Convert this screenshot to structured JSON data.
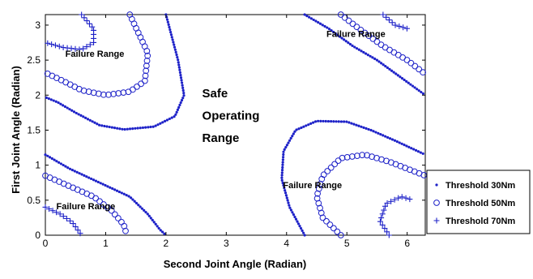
{
  "chart_data": {
    "type": "scatter",
    "title": "",
    "xlabel": "Second Joint Angle (Radian)",
    "ylabel": "First Joint Angle (Radian)",
    "xlim": [
      0,
      6.3
    ],
    "ylim": [
      0,
      3.15
    ],
    "xticks": [
      0,
      1,
      2,
      3,
      4,
      5,
      6
    ],
    "yticks": [
      0,
      0.5,
      1,
      1.5,
      2,
      2.5,
      3
    ],
    "ytick_labels": [
      "0",
      "0.5",
      "1",
      "1.5",
      "2",
      "2.5",
      "3"
    ],
    "grid": false,
    "legend_position": "right",
    "accent_color": "#1e22c8",
    "annotations": [
      {
        "text": "Failure Range",
        "x": 0.82,
        "y": 2.55,
        "style": "small"
      },
      {
        "text": "Failure Range",
        "x": 5.15,
        "y": 2.83,
        "style": "small"
      },
      {
        "text": "Failure Range",
        "x": 4.43,
        "y": 0.67,
        "style": "small"
      },
      {
        "text": "Failure Range",
        "x": 0.67,
        "y": 0.37,
        "style": "small"
      },
      {
        "text": "Safe",
        "x": 2.6,
        "y": 1.97,
        "style": "big"
      },
      {
        "text": "Operating",
        "x": 2.6,
        "y": 1.65,
        "style": "big"
      },
      {
        "text": "Range",
        "x": 2.6,
        "y": 1.33,
        "style": "big"
      }
    ],
    "series": [
      {
        "name": "Threshold 30Nm",
        "marker": "dot",
        "curves": [
          {
            "points": [
              [
                2.0,
                3.15
              ],
              [
                2.2,
                2.5
              ],
              [
                2.3,
                2.0
              ],
              [
                2.15,
                1.7
              ],
              [
                1.8,
                1.55
              ],
              [
                1.3,
                1.51
              ],
              [
                0.9,
                1.57
              ],
              [
                0.5,
                1.75
              ],
              [
                0.2,
                1.9
              ],
              [
                0.0,
                1.97
              ]
            ]
          },
          {
            "points": [
              [
                0.0,
                1.15
              ],
              [
                0.4,
                0.95
              ],
              [
                0.9,
                0.75
              ],
              [
                1.4,
                0.55
              ],
              [
                1.7,
                0.3
              ],
              [
                1.9,
                0.08
              ],
              [
                2.0,
                0.0
              ]
            ]
          },
          {
            "points": [
              [
                4.3,
                3.15
              ],
              [
                4.7,
                2.95
              ],
              [
                5.1,
                2.7
              ],
              [
                5.5,
                2.5
              ],
              [
                5.9,
                2.25
              ],
              [
                6.3,
                2.0
              ]
            ]
          },
          {
            "points": [
              [
                4.3,
                0.0
              ],
              [
                4.05,
                0.4
              ],
              [
                3.92,
                0.8
              ],
              [
                3.95,
                1.2
              ],
              [
                4.15,
                1.5
              ],
              [
                4.5,
                1.63
              ],
              [
                5.0,
                1.62
              ],
              [
                5.4,
                1.5
              ],
              [
                5.8,
                1.35
              ],
              [
                6.3,
                1.15
              ]
            ]
          }
        ]
      },
      {
        "name": "Threshold 50Nm",
        "marker": "circle",
        "curves": [
          {
            "points": [
              [
                1.4,
                3.15
              ],
              [
                1.7,
                2.6
              ],
              [
                1.65,
                2.2
              ],
              [
                1.4,
                2.05
              ],
              [
                1.0,
                2.0
              ],
              [
                0.6,
                2.07
              ],
              [
                0.3,
                2.2
              ],
              [
                0.0,
                2.32
              ]
            ]
          },
          {
            "points": [
              [
                0.0,
                0.85
              ],
              [
                0.4,
                0.7
              ],
              [
                0.8,
                0.55
              ],
              [
                1.1,
                0.35
              ],
              [
                1.3,
                0.15
              ],
              [
                1.35,
                0.0
              ]
            ]
          },
          {
            "points": [
              [
                4.9,
                3.15
              ],
              [
                5.2,
                2.95
              ],
              [
                5.6,
                2.7
              ],
              [
                6.0,
                2.5
              ],
              [
                6.3,
                2.3
              ]
            ]
          },
          {
            "points": [
              [
                4.9,
                0.0
              ],
              [
                4.6,
                0.25
              ],
              [
                4.5,
                0.55
              ],
              [
                4.6,
                0.85
              ],
              [
                4.9,
                1.1
              ],
              [
                5.3,
                1.15
              ],
              [
                5.7,
                1.05
              ],
              [
                6.0,
                0.95
              ],
              [
                6.3,
                0.85
              ]
            ]
          }
        ]
      },
      {
        "name": "Threshold 70Nm",
        "marker": "plus",
        "curves": [
          {
            "points": [
              [
                0.6,
                3.15
              ],
              [
                0.8,
                2.95
              ],
              [
                0.8,
                2.75
              ],
              [
                0.6,
                2.65
              ],
              [
                0.3,
                2.68
              ],
              [
                0.0,
                2.75
              ]
            ]
          },
          {
            "points": [
              [
                0.0,
                0.4
              ],
              [
                0.25,
                0.3
              ],
              [
                0.45,
                0.18
              ],
              [
                0.6,
                0.0
              ]
            ]
          },
          {
            "points": [
              [
                5.6,
                3.15
              ],
              [
                5.8,
                3.0
              ],
              [
                6.0,
                2.95
              ]
            ]
          },
          {
            "points": [
              [
                5.7,
                0.0
              ],
              [
                5.55,
                0.2
              ],
              [
                5.65,
                0.45
              ],
              [
                5.9,
                0.55
              ],
              [
                6.1,
                0.5
              ]
            ]
          }
        ]
      }
    ]
  }
}
